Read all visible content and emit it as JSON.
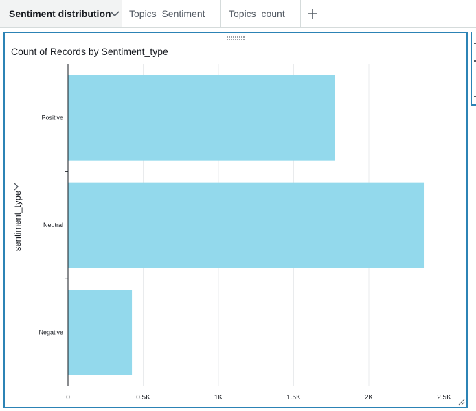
{
  "tabs": [
    {
      "label": "Sentiment distribution",
      "active": true
    },
    {
      "label": "Topics_Sentiment",
      "active": false
    },
    {
      "label": "Topics_count",
      "active": false
    }
  ],
  "visual": {
    "title": "Count of Records by Sentiment_type"
  },
  "chart_data": {
    "type": "bar",
    "orientation": "horizontal",
    "title": "Count of Records by Sentiment_type",
    "ylabel": "sentiment_type",
    "xlabel": "",
    "categories": [
      "Positive",
      "Neutral",
      "Negative"
    ],
    "values": [
      1775,
      2370,
      425
    ],
    "xlim": [
      0,
      2600
    ],
    "xticks": [
      0,
      500,
      1000,
      1500,
      2000,
      2500
    ],
    "xtick_labels": [
      "0",
      "0.5K",
      "1K",
      "1.5K",
      "2K",
      "2.5K"
    ],
    "bar_color": "#93d9ec",
    "grid": true
  },
  "colors": {
    "accent": "#2c83b5",
    "bar": "#93d9ec",
    "active_tab_bg": "#f2f3f3"
  },
  "icons": {
    "tab_dropdown": "chevron-down-icon",
    "add_sheet": "plus-icon",
    "axis_collapse": "chevron-right-icon"
  }
}
